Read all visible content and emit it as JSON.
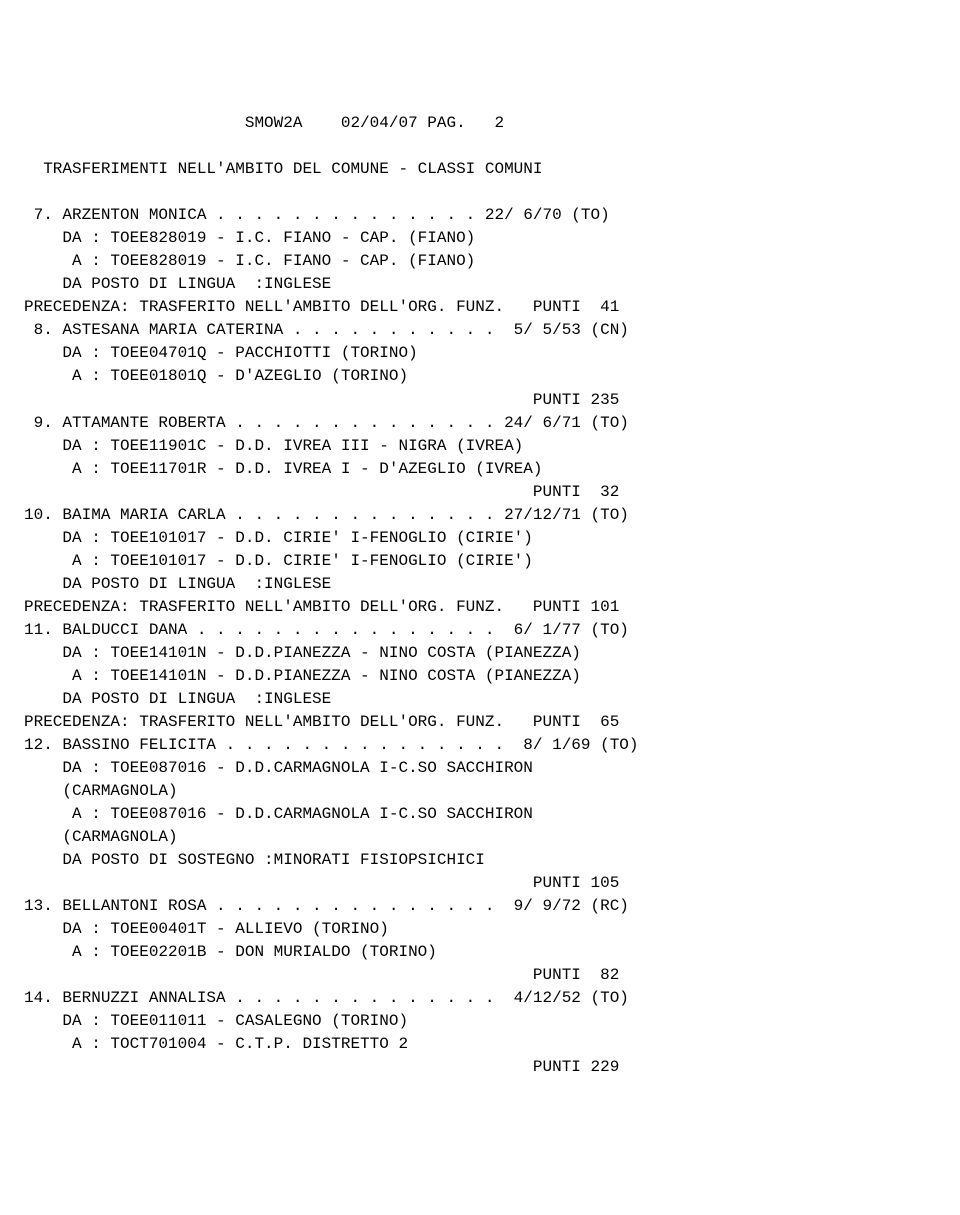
{
  "header": {
    "code": "SMOW2A",
    "date": "02/04/07",
    "pageLabel": "PAG.",
    "pageNum": "2"
  },
  "sectionTitle": "TRASFERIMENTI NELL'AMBITO DEL COMUNE - CLASSI COMUNI",
  "entries": [
    {
      "num": " 7",
      "name": "ARZENTON MONICA",
      "dots": ". . . . . . . . . . . . . .",
      "ref": "22/ 6/70 (TO)",
      "da": "DA : TOEE828019 - I.C. FIANO - CAP. (FIANO)",
      "a": " A : TOEE828019 - I.C. FIANO - CAP. (FIANO)",
      "extra1": "    DA POSTO DI LINGUA  :INGLESE",
      "footer": "PRECEDENZA: TRASFERITO NELL'AMBITO DELL'ORG. FUNZ.   PUNTI  41"
    },
    {
      "num": " 8",
      "name": "ASTESANA MARIA CATERINA",
      "dots": ". . . . . . . . . . .",
      "ref": " 5/ 5/53 (CN)",
      "da": "DA : TOEE04701Q - PACCHIOTTI (TORINO)",
      "a": " A : TOEE01801Q - D'AZEGLIO (TORINO)",
      "footer": "                                                     PUNTI 235"
    },
    {
      "num": " 9",
      "name": "ATTAMANTE ROBERTA",
      "dots": ". . . . . . . . . . . . . .",
      "ref": "24/ 6/71 (TO)",
      "da": "DA : TOEE11901C - D.D. IVREA III - NIGRA (IVREA)",
      "a": " A : TOEE11701R - D.D. IVREA I - D'AZEGLIO (IVREA)",
      "footer": "                                                     PUNTI  32"
    },
    {
      "num": "10",
      "name": "BAIMA MARIA CARLA",
      "dots": ". . . . . . . . . . . . . .",
      "ref": "27/12/71 (TO)",
      "da": "DA : TOEE101017 - D.D. CIRIE' I-FENOGLIO (CIRIE')",
      "a": " A : TOEE101017 - D.D. CIRIE' I-FENOGLIO (CIRIE')",
      "extra1": "    DA POSTO DI LINGUA  :INGLESE",
      "footer": "PRECEDENZA: TRASFERITO NELL'AMBITO DELL'ORG. FUNZ.   PUNTI 101"
    },
    {
      "num": "11",
      "name": "BALDUCCI DANA",
      "dots": ". . . . . . . . . . . . . . . .",
      "ref": " 6/ 1/77 (TO)",
      "da": "DA : TOEE14101N - D.D.PIANEZZA - NINO COSTA (PIANEZZA)",
      "a": " A : TOEE14101N - D.D.PIANEZZA - NINO COSTA (PIANEZZA)",
      "extra1": "    DA POSTO DI LINGUA  :INGLESE",
      "footer": "PRECEDENZA: TRASFERITO NELL'AMBITO DELL'ORG. FUNZ.   PUNTI  65"
    },
    {
      "num": "12",
      "name": "BASSINO FELICITA",
      "dots": ". . . . . . . . . . . . . . .",
      "ref": " 8/ 1/69 (TO)",
      "da": "DA : TOEE087016 - D.D.CARMAGNOLA I-C.SO SACCHIRON",
      "daCont": "(CARMAGNOLA)",
      "a": " A : TOEE087016 - D.D.CARMAGNOLA I-C.SO SACCHIRON",
      "aCont": "(CARMAGNOLA)",
      "extra1": "    DA POSTO DI SOSTEGNO :MINORATI FISIOPSICHICI",
      "footer": "                                                     PUNTI 105"
    },
    {
      "num": "13",
      "name": "BELLANTONI ROSA",
      "dots": ". . . . . . . . . . . . . . .",
      "ref": " 9/ 9/72 (RC)",
      "da": "DA : TOEE00401T - ALLIEVO (TORINO)",
      "a": " A : TOEE02201B - DON MURIALDO (TORINO)",
      "footer": "                                                     PUNTI  82"
    },
    {
      "num": "14",
      "name": "BERNUZZI ANNALISA",
      "dots": ". . . . . . . . . . . . . .",
      "ref": " 4/12/52 (TO)",
      "da": "DA : TOEE011011 - CASALEGNO (TORINO)",
      "a": " A : TOCT701004 - C.T.P. DISTRETTO 2",
      "footer": "                                                     PUNTI 229"
    }
  ]
}
